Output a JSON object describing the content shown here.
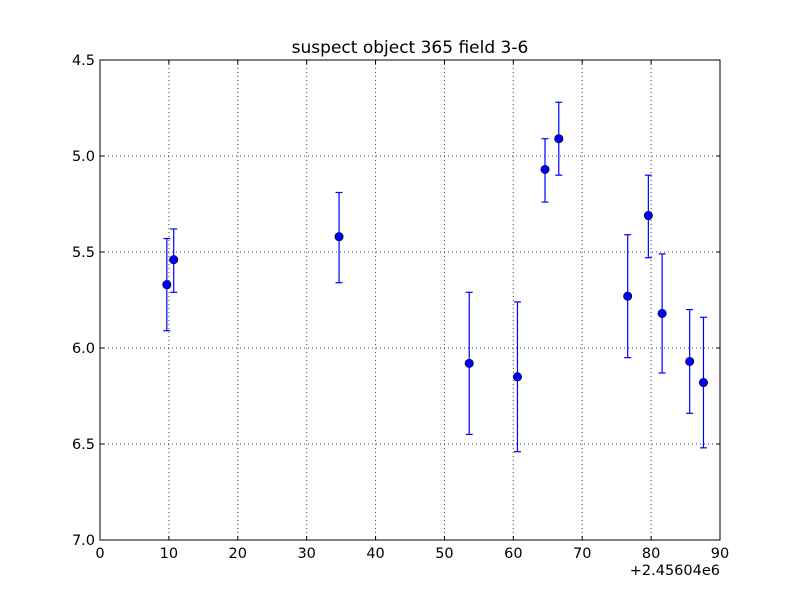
{
  "chart_data": {
    "type": "scatter",
    "title": "suspect object 365 field 3-6",
    "xlabel": "",
    "ylabel": "",
    "x_offset_label": "+2.45604e6",
    "xlim": [
      0,
      90
    ],
    "ylim": [
      7.0,
      4.5
    ],
    "y_inverted": true,
    "grid": true,
    "x_ticks": [
      0,
      10,
      20,
      30,
      40,
      50,
      60,
      70,
      80,
      90
    ],
    "x_tick_labels": [
      "0",
      "10",
      "20",
      "30",
      "40",
      "50",
      "60",
      "70",
      "80",
      "90"
    ],
    "y_ticks": [
      4.5,
      5.0,
      5.5,
      6.0,
      6.5,
      7.0
    ],
    "y_tick_labels": [
      "4.5",
      "5.0",
      "5.5",
      "6.0",
      "6.5",
      "7.0"
    ],
    "marker_color": "#0000ff",
    "errorbar_color": "#0000ff",
    "series": [
      {
        "points": [
          {
            "x": 9.7,
            "y": 5.67,
            "err_low": 5.43,
            "err_high": 5.91
          },
          {
            "x": 10.7,
            "y": 5.54,
            "err_low": 5.38,
            "err_high": 5.71
          },
          {
            "x": 34.7,
            "y": 5.42,
            "err_low": 5.19,
            "err_high": 5.66
          },
          {
            "x": 53.6,
            "y": 6.08,
            "err_low": 5.71,
            "err_high": 6.45
          },
          {
            "x": 60.6,
            "y": 6.15,
            "err_low": 5.76,
            "err_high": 6.54
          },
          {
            "x": 64.6,
            "y": 5.07,
            "err_low": 4.91,
            "err_high": 5.24
          },
          {
            "x": 66.6,
            "y": 4.91,
            "err_low": 4.72,
            "err_high": 5.1
          },
          {
            "x": 76.6,
            "y": 5.73,
            "err_low": 5.41,
            "err_high": 6.05
          },
          {
            "x": 79.6,
            "y": 5.31,
            "err_low": 5.1,
            "err_high": 5.53
          },
          {
            "x": 81.6,
            "y": 5.82,
            "err_low": 5.51,
            "err_high": 6.13
          },
          {
            "x": 85.6,
            "y": 6.07,
            "err_low": 5.8,
            "err_high": 6.34
          },
          {
            "x": 87.6,
            "y": 6.18,
            "err_low": 5.84,
            "err_high": 6.52
          }
        ]
      }
    ]
  }
}
